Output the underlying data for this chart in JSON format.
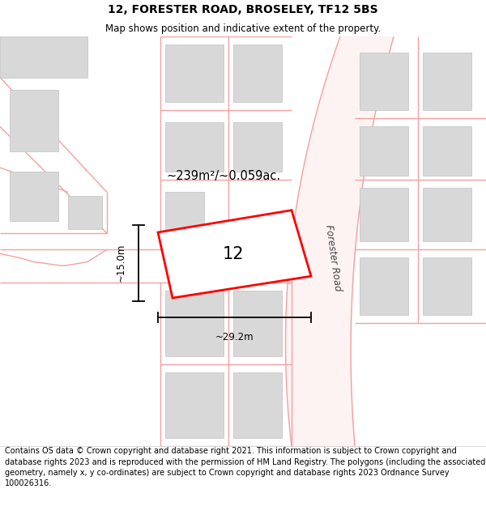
{
  "title": "12, FORESTER ROAD, BROSELEY, TF12 5BS",
  "subtitle": "Map shows position and indicative extent of the property.",
  "title_fontsize": 10,
  "subtitle_fontsize": 8.5,
  "bg_color": "#ffffff",
  "footer_text": "Contains OS data © Crown copyright and database right 2021. This information is subject to Crown copyright and database rights 2023 and is reproduced with the permission of HM Land Registry. The polygons (including the associated geometry, namely x, y co-ordinates) are subject to Crown copyright and database rights 2023 Ordnance Survey 100026316.",
  "footer_fontsize": 7.0,
  "area_label": "~239m²/~0.059ac.",
  "width_label": "~29.2m",
  "height_label": "~15.0m",
  "property_number": "12",
  "road_label": "Forester Road",
  "plot_color": "#ff0000",
  "pink": "#f5a0a0",
  "gray_block": "#d8d8d8",
  "gray_block_edge": "#c0c0c0"
}
